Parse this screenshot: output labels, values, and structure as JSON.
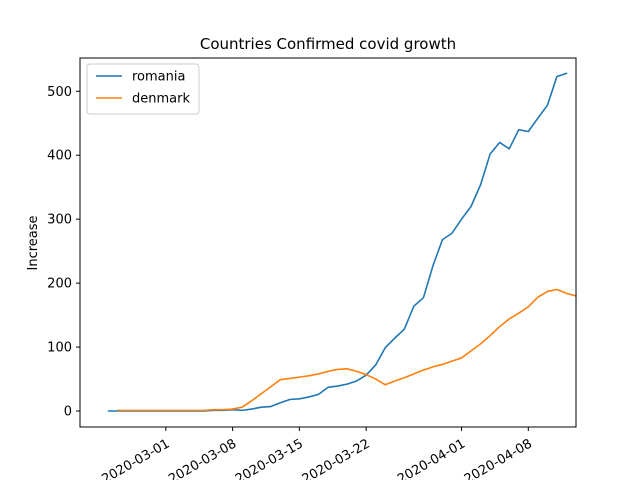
{
  "chart_data": {
    "type": "line",
    "title": "Countries Confirmed covid growth",
    "xlabel": "",
    "ylabel": "Increase",
    "x_type": "date",
    "xlim": [
      "2020-02-21",
      "2020-04-13"
    ],
    "ylim": [
      -25,
      552
    ],
    "grid": false,
    "legend_position": "top-left",
    "x_ticks": [
      "2020-03-01",
      "2020-03-08",
      "2020-03-15",
      "2020-03-22",
      "2020-04-01",
      "2020-04-08"
    ],
    "y_ticks": [
      0,
      100,
      200,
      300,
      400,
      500
    ],
    "series": [
      {
        "name": "romania",
        "color": "#1f77b4",
        "points": [
          [
            "2020-02-24",
            0
          ],
          [
            "2020-02-25",
            0
          ],
          [
            "2020-02-26",
            0
          ],
          [
            "2020-02-27",
            0
          ],
          [
            "2020-02-28",
            0
          ],
          [
            "2020-02-29",
            0
          ],
          [
            "2020-03-01",
            0
          ],
          [
            "2020-03-02",
            0
          ],
          [
            "2020-03-03",
            0
          ],
          [
            "2020-03-04",
            0
          ],
          [
            "2020-03-05",
            0
          ],
          [
            "2020-03-06",
            1
          ],
          [
            "2020-03-07",
            1
          ],
          [
            "2020-03-08",
            2
          ],
          [
            "2020-03-09",
            1
          ],
          [
            "2020-03-10",
            3
          ],
          [
            "2020-03-11",
            6
          ],
          [
            "2020-03-12",
            7
          ],
          [
            "2020-03-13",
            13
          ],
          [
            "2020-03-14",
            18
          ],
          [
            "2020-03-15",
            19
          ],
          [
            "2020-03-16",
            22
          ],
          [
            "2020-03-17",
            26
          ],
          [
            "2020-03-18",
            37
          ],
          [
            "2020-03-19",
            39
          ],
          [
            "2020-03-20",
            42
          ],
          [
            "2020-03-21",
            47
          ],
          [
            "2020-03-22",
            56
          ],
          [
            "2020-03-23",
            72
          ],
          [
            "2020-03-24",
            99
          ],
          [
            "2020-03-25",
            114
          ],
          [
            "2020-03-26",
            128
          ],
          [
            "2020-03-27",
            164
          ],
          [
            "2020-03-28",
            177
          ],
          [
            "2020-03-29",
            227
          ],
          [
            "2020-03-30",
            268
          ],
          [
            "2020-03-31",
            278
          ],
          [
            "2020-04-01",
            300
          ],
          [
            "2020-04-02",
            320
          ],
          [
            "2020-04-03",
            354
          ],
          [
            "2020-04-04",
            402
          ],
          [
            "2020-04-05",
            420
          ],
          [
            "2020-04-06",
            410
          ],
          [
            "2020-04-07",
            440
          ],
          [
            "2020-04-08",
            437
          ],
          [
            "2020-04-09",
            458
          ],
          [
            "2020-04-10",
            478
          ],
          [
            "2020-04-11",
            523
          ],
          [
            "2020-04-12",
            528
          ]
        ]
      },
      {
        "name": "denmark",
        "color": "#ff7f0e",
        "points": [
          [
            "2020-02-25",
            1
          ],
          [
            "2020-02-26",
            1
          ],
          [
            "2020-02-27",
            1
          ],
          [
            "2020-02-28",
            1
          ],
          [
            "2020-02-29",
            1
          ],
          [
            "2020-03-01",
            1
          ],
          [
            "2020-03-02",
            1
          ],
          [
            "2020-03-03",
            1
          ],
          [
            "2020-03-04",
            1
          ],
          [
            "2020-03-05",
            1
          ],
          [
            "2020-03-06",
            2
          ],
          [
            "2020-03-07",
            2
          ],
          [
            "2020-03-08",
            3
          ],
          [
            "2020-03-09",
            6
          ],
          [
            "2020-03-10",
            16
          ],
          [
            "2020-03-11",
            27
          ],
          [
            "2020-03-12",
            38
          ],
          [
            "2020-03-13",
            49
          ],
          [
            "2020-03-14",
            51
          ],
          [
            "2020-03-15",
            53
          ],
          [
            "2020-03-16",
            55
          ],
          [
            "2020-03-17",
            58
          ],
          [
            "2020-03-18",
            62
          ],
          [
            "2020-03-19",
            65
          ],
          [
            "2020-03-20",
            66
          ],
          [
            "2020-03-21",
            62
          ],
          [
            "2020-03-22",
            57
          ],
          [
            "2020-03-23",
            50
          ],
          [
            "2020-03-24",
            41
          ],
          [
            "2020-03-25",
            47
          ],
          [
            "2020-03-26",
            52
          ],
          [
            "2020-03-27",
            58
          ],
          [
            "2020-03-28",
            64
          ],
          [
            "2020-03-29",
            69
          ],
          [
            "2020-03-30",
            73
          ],
          [
            "2020-03-31",
            78
          ],
          [
            "2020-04-01",
            83
          ],
          [
            "2020-04-02",
            94
          ],
          [
            "2020-04-03",
            105
          ],
          [
            "2020-04-04",
            118
          ],
          [
            "2020-04-05",
            132
          ],
          [
            "2020-04-06",
            144
          ],
          [
            "2020-04-07",
            153
          ],
          [
            "2020-04-08",
            163
          ],
          [
            "2020-04-09",
            178
          ],
          [
            "2020-04-10",
            187
          ],
          [
            "2020-04-11",
            190
          ],
          [
            "2020-04-12",
            184
          ],
          [
            "2020-04-13",
            180
          ]
        ]
      }
    ]
  }
}
